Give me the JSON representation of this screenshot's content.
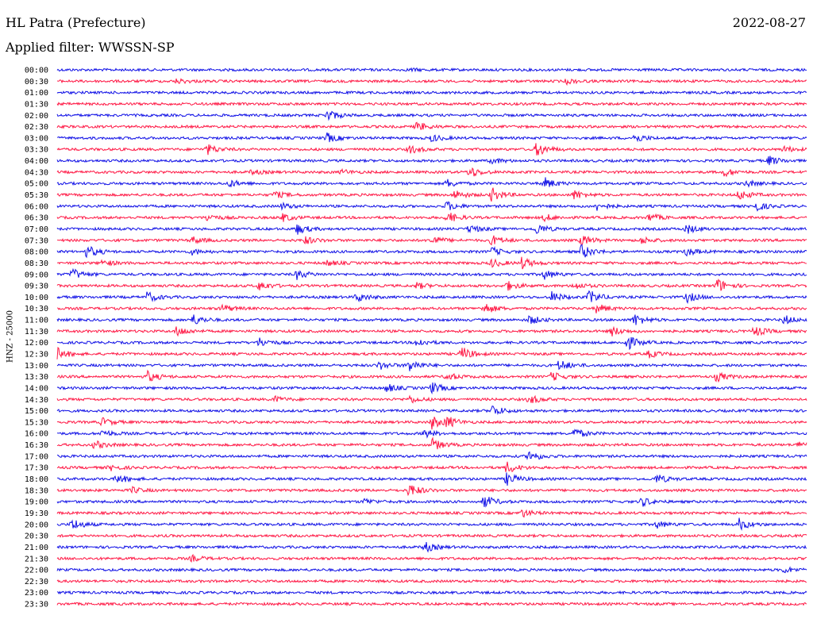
{
  "header": {
    "station": "HL Patra (Prefecture)",
    "date": "2022-08-27",
    "filter": "Applied filter: WWSSN-SP"
  },
  "chart_data": {
    "type": "line",
    "channel_label": "HNZ - 25000",
    "colors": {
      "even_rows": "#1010e6",
      "odd_rows": "#ff1744"
    },
    "rows": [
      {
        "label": "00:00",
        "events": [
          {
            "t": 0.47,
            "amp": 0.2
          }
        ]
      },
      {
        "label": "00:30",
        "events": [
          {
            "t": 0.16,
            "amp": 0.4
          },
          {
            "t": 0.68,
            "amp": 0.4
          }
        ]
      },
      {
        "label": "01:00",
        "events": []
      },
      {
        "label": "01:30",
        "events": []
      },
      {
        "label": "02:00",
        "events": [
          {
            "t": 0.36,
            "amp": 1.0
          }
        ]
      },
      {
        "label": "02:30",
        "events": [
          {
            "t": 0.48,
            "amp": 0.8
          }
        ]
      },
      {
        "label": "03:00",
        "events": [
          {
            "t": 0.36,
            "amp": 0.8
          },
          {
            "t": 0.5,
            "amp": 0.6
          },
          {
            "t": 0.77,
            "amp": 0.8
          }
        ]
      },
      {
        "label": "03:30",
        "events": [
          {
            "t": 0.2,
            "amp": 0.9
          },
          {
            "t": 0.47,
            "amp": 0.7
          },
          {
            "t": 0.64,
            "amp": 1.3
          },
          {
            "t": 0.97,
            "amp": 0.5
          }
        ]
      },
      {
        "label": "04:00",
        "events": [
          {
            "t": 0.58,
            "amp": 0.5
          },
          {
            "t": 0.95,
            "amp": 0.8
          }
        ]
      },
      {
        "label": "04:30",
        "events": [
          {
            "t": 0.26,
            "amp": 0.4
          },
          {
            "t": 0.38,
            "amp": 0.4
          },
          {
            "t": 0.55,
            "amp": 1.0
          },
          {
            "t": 0.89,
            "amp": 0.7
          }
        ]
      },
      {
        "label": "05:00",
        "events": [
          {
            "t": 0.23,
            "amp": 0.6
          },
          {
            "t": 0.52,
            "amp": 0.7
          },
          {
            "t": 0.65,
            "amp": 1.0
          },
          {
            "t": 0.92,
            "amp": 0.5
          }
        ]
      },
      {
        "label": "05:30",
        "events": [
          {
            "t": 0.29,
            "amp": 0.6
          },
          {
            "t": 0.53,
            "amp": 0.8
          },
          {
            "t": 0.58,
            "amp": 1.2
          },
          {
            "t": 0.69,
            "amp": 0.8
          },
          {
            "t": 0.91,
            "amp": 0.9
          }
        ]
      },
      {
        "label": "06:00",
        "events": [
          {
            "t": 0.3,
            "amp": 0.5
          },
          {
            "t": 0.52,
            "amp": 0.8
          },
          {
            "t": 0.72,
            "amp": 0.7
          },
          {
            "t": 0.93,
            "amp": 1.0
          }
        ]
      },
      {
        "label": "06:30",
        "events": [
          {
            "t": 0.2,
            "amp": 0.6
          },
          {
            "t": 0.3,
            "amp": 0.7
          },
          {
            "t": 0.52,
            "amp": 1.0
          },
          {
            "t": 0.65,
            "amp": 0.6
          },
          {
            "t": 0.79,
            "amp": 0.7
          }
        ]
      },
      {
        "label": "07:00",
        "events": [
          {
            "t": 0.32,
            "amp": 0.9
          },
          {
            "t": 0.55,
            "amp": 0.7
          },
          {
            "t": 0.64,
            "amp": 0.9
          },
          {
            "t": 0.84,
            "amp": 0.8
          }
        ]
      },
      {
        "label": "07:30",
        "events": [
          {
            "t": 0.18,
            "amp": 0.6
          },
          {
            "t": 0.33,
            "amp": 0.7
          },
          {
            "t": 0.5,
            "amp": 0.8
          },
          {
            "t": 0.58,
            "amp": 0.9
          },
          {
            "t": 0.7,
            "amp": 0.9
          },
          {
            "t": 0.78,
            "amp": 0.6
          }
        ]
      },
      {
        "label": "08:00",
        "events": [
          {
            "t": 0.04,
            "amp": 1.1
          },
          {
            "t": 0.18,
            "amp": 0.5
          },
          {
            "t": 0.58,
            "amp": 0.7
          },
          {
            "t": 0.7,
            "amp": 1.3
          },
          {
            "t": 0.84,
            "amp": 0.7
          }
        ]
      },
      {
        "label": "08:30",
        "events": [
          {
            "t": 0.06,
            "amp": 0.6
          },
          {
            "t": 0.36,
            "amp": 0.5
          },
          {
            "t": 0.58,
            "amp": 0.7
          },
          {
            "t": 0.62,
            "amp": 1.0
          }
        ]
      },
      {
        "label": "09:00",
        "events": [
          {
            "t": 0.02,
            "amp": 1.0
          },
          {
            "t": 0.32,
            "amp": 0.8
          },
          {
            "t": 0.65,
            "amp": 0.8
          }
        ]
      },
      {
        "label": "09:30",
        "events": [
          {
            "t": 0.27,
            "amp": 0.8
          },
          {
            "t": 0.48,
            "amp": 0.5
          },
          {
            "t": 0.6,
            "amp": 0.8
          },
          {
            "t": 0.69,
            "amp": 0.6
          },
          {
            "t": 0.88,
            "amp": 1.3
          }
        ]
      },
      {
        "label": "10:00",
        "events": [
          {
            "t": 0.12,
            "amp": 0.9
          },
          {
            "t": 0.4,
            "amp": 0.8
          },
          {
            "t": 0.66,
            "amp": 0.9
          },
          {
            "t": 0.71,
            "amp": 1.2
          },
          {
            "t": 0.84,
            "amp": 0.9
          }
        ]
      },
      {
        "label": "10:30",
        "events": [
          {
            "t": 0.22,
            "amp": 0.7
          },
          {
            "t": 0.57,
            "amp": 1.0
          },
          {
            "t": 0.72,
            "amp": 0.8
          }
        ]
      },
      {
        "label": "11:00",
        "events": [
          {
            "t": 0.18,
            "amp": 1.0
          },
          {
            "t": 0.63,
            "amp": 0.8
          },
          {
            "t": 0.77,
            "amp": 1.1
          },
          {
            "t": 0.97,
            "amp": 0.8
          }
        ]
      },
      {
        "label": "11:30",
        "events": [
          {
            "t": 0.16,
            "amp": 0.9
          },
          {
            "t": 0.74,
            "amp": 0.8
          },
          {
            "t": 0.93,
            "amp": 0.9
          }
        ]
      },
      {
        "label": "12:00",
        "events": [
          {
            "t": 0.27,
            "amp": 0.8
          },
          {
            "t": 0.48,
            "amp": 0.7
          },
          {
            "t": 0.76,
            "amp": 1.3
          }
        ]
      },
      {
        "label": "12:30",
        "events": [
          {
            "t": 0.0,
            "amp": 1.0
          },
          {
            "t": 0.54,
            "amp": 1.2
          },
          {
            "t": 0.79,
            "amp": 0.6
          }
        ]
      },
      {
        "label": "13:00",
        "events": [
          {
            "t": 0.43,
            "amp": 0.7
          },
          {
            "t": 0.47,
            "amp": 1.1
          },
          {
            "t": 0.67,
            "amp": 1.0
          }
        ]
      },
      {
        "label": "13:30",
        "events": [
          {
            "t": 0.12,
            "amp": 1.0
          },
          {
            "t": 0.52,
            "amp": 0.7
          },
          {
            "t": 0.66,
            "amp": 0.8
          },
          {
            "t": 0.88,
            "amp": 0.8
          }
        ]
      },
      {
        "label": "14:00",
        "events": [
          {
            "t": 0.44,
            "amp": 0.7
          },
          {
            "t": 0.5,
            "amp": 0.9
          }
        ]
      },
      {
        "label": "14:30",
        "events": [
          {
            "t": 0.29,
            "amp": 0.5
          },
          {
            "t": 0.47,
            "amp": 0.6
          },
          {
            "t": 0.63,
            "amp": 0.8
          }
        ]
      },
      {
        "label": "15:00",
        "events": [
          {
            "t": 0.58,
            "amp": 1.0
          }
        ]
      },
      {
        "label": "15:30",
        "events": [
          {
            "t": 0.06,
            "amp": 0.7
          },
          {
            "t": 0.5,
            "amp": 1.1
          },
          {
            "t": 0.52,
            "amp": 0.9
          }
        ]
      },
      {
        "label": "16:00",
        "events": [
          {
            "t": 0.06,
            "amp": 0.6
          },
          {
            "t": 0.49,
            "amp": 0.7
          },
          {
            "t": 0.69,
            "amp": 0.9
          }
        ]
      },
      {
        "label": "16:30",
        "events": [
          {
            "t": 0.05,
            "amp": 0.7
          },
          {
            "t": 0.5,
            "amp": 1.1
          },
          {
            "t": 0.99,
            "amp": 0.7
          }
        ]
      },
      {
        "label": "17:00",
        "events": [
          {
            "t": 0.63,
            "amp": 1.0
          }
        ]
      },
      {
        "label": "17:30",
        "events": [
          {
            "t": 0.07,
            "amp": 0.5
          },
          {
            "t": 0.6,
            "amp": 1.0
          }
        ]
      },
      {
        "label": "18:00",
        "events": [
          {
            "t": 0.08,
            "amp": 0.8
          },
          {
            "t": 0.6,
            "amp": 1.1
          },
          {
            "t": 0.8,
            "amp": 0.8
          }
        ]
      },
      {
        "label": "18:30",
        "events": [
          {
            "t": 0.1,
            "amp": 0.5
          },
          {
            "t": 0.47,
            "amp": 1.2
          }
        ]
      },
      {
        "label": "19:00",
        "events": [
          {
            "t": 0.41,
            "amp": 0.5
          },
          {
            "t": 0.57,
            "amp": 1.1
          },
          {
            "t": 0.78,
            "amp": 0.8
          }
        ]
      },
      {
        "label": "19:30",
        "events": [
          {
            "t": 0.62,
            "amp": 0.7
          }
        ]
      },
      {
        "label": "20:00",
        "events": [
          {
            "t": 0.02,
            "amp": 1.0
          },
          {
            "t": 0.8,
            "amp": 0.6
          },
          {
            "t": 0.91,
            "amp": 1.0
          }
        ]
      },
      {
        "label": "20:30",
        "events": []
      },
      {
        "label": "21:00",
        "events": [
          {
            "t": 0.49,
            "amp": 0.9
          }
        ]
      },
      {
        "label": "21:30",
        "events": [
          {
            "t": 0.18,
            "amp": 0.5
          }
        ]
      },
      {
        "label": "22:00",
        "events": [
          {
            "t": 0.97,
            "amp": 0.5
          }
        ]
      },
      {
        "label": "22:30",
        "events": []
      },
      {
        "label": "23:00",
        "events": []
      },
      {
        "label": "23:30",
        "events": []
      }
    ]
  }
}
